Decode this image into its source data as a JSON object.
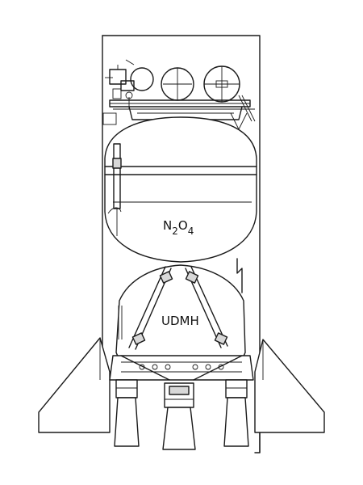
{
  "diagram": {
    "upper_tank_label": {
      "base": "N",
      "sub1": "2",
      "mid": "O",
      "sub2": "4"
    },
    "lower_tank_label": "UDMH"
  }
}
